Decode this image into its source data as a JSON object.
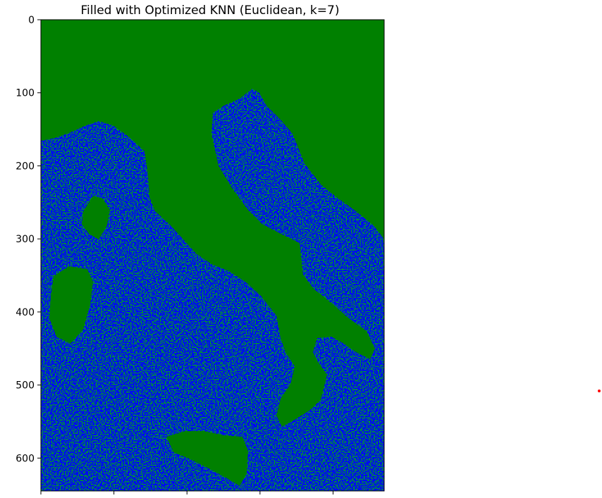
{
  "chart_data": {
    "type": "heatmap",
    "title": "Filled with Optimized KNN (Euclidean, k=7)",
    "xlabel": "",
    "ylabel": "",
    "colors": {
      "land": "#008000",
      "water": "#0000ff",
      "marker": "#ff0000"
    },
    "xlim": [
      0,
      470
    ],
    "ylim": [
      645,
      0
    ],
    "yticks": [
      {
        "value": 0,
        "label": "0"
      },
      {
        "value": 100,
        "label": "100"
      },
      {
        "value": 200,
        "label": "200"
      },
      {
        "value": 300,
        "label": "300"
      },
      {
        "value": 400,
        "label": "400"
      },
      {
        "value": 500,
        "label": "500"
      },
      {
        "value": 600,
        "label": "600"
      }
    ],
    "xticks": [
      {
        "value": 0,
        "label": ""
      },
      {
        "value": 100,
        "label": ""
      },
      {
        "value": 200,
        "label": ""
      },
      {
        "value": 300,
        "label": ""
      },
      {
        "value": 400,
        "label": ""
      }
    ],
    "grid": false
  }
}
